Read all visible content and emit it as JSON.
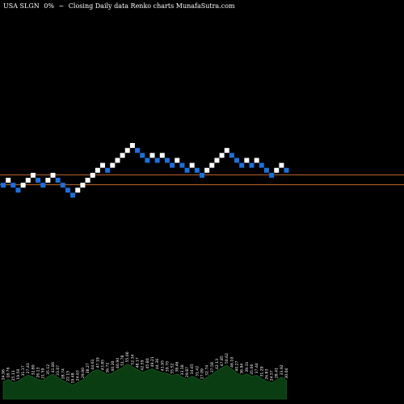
{
  "header": {
    "ticker": "USA SLGN",
    "change": "0%",
    "change_arrow": "~",
    "caption": "Closing Daily data Renko charts MunafaSutra.com"
  },
  "colors": {
    "background": "#000000",
    "up_brick": "#ffffff",
    "down_brick": "#1e6fd9",
    "reference_line": "#c06a2b",
    "volume_fill": "#0b3d12",
    "volume_text": "#ffffff"
  },
  "chart_data": {
    "type": "renko",
    "title": "",
    "xlabel": "",
    "ylabel": "",
    "ylim": [
      0,
      27
    ],
    "reference_levels": [
      9.5,
      11.5
    ],
    "bricks": [
      {
        "level": 9,
        "direction": "down"
      },
      {
        "level": 10,
        "direction": "up"
      },
      {
        "level": 9,
        "direction": "down"
      },
      {
        "level": 8,
        "direction": "down"
      },
      {
        "level": 9,
        "direction": "up"
      },
      {
        "level": 10,
        "direction": "up"
      },
      {
        "level": 11,
        "direction": "up"
      },
      {
        "level": 10,
        "direction": "down"
      },
      {
        "level": 9,
        "direction": "down"
      },
      {
        "level": 10,
        "direction": "up"
      },
      {
        "level": 11,
        "direction": "up"
      },
      {
        "level": 10,
        "direction": "down"
      },
      {
        "level": 9,
        "direction": "down"
      },
      {
        "level": 8,
        "direction": "down"
      },
      {
        "level": 7,
        "direction": "down"
      },
      {
        "level": 8,
        "direction": "up"
      },
      {
        "level": 9,
        "direction": "up"
      },
      {
        "level": 10,
        "direction": "up"
      },
      {
        "level": 11,
        "direction": "up"
      },
      {
        "level": 12,
        "direction": "up"
      },
      {
        "level": 13,
        "direction": "up"
      },
      {
        "level": 12,
        "direction": "down"
      },
      {
        "level": 13,
        "direction": "up"
      },
      {
        "level": 14,
        "direction": "up"
      },
      {
        "level": 15,
        "direction": "up"
      },
      {
        "level": 16,
        "direction": "up"
      },
      {
        "level": 17,
        "direction": "up"
      },
      {
        "level": 16,
        "direction": "down"
      },
      {
        "level": 15,
        "direction": "down"
      },
      {
        "level": 14,
        "direction": "down"
      },
      {
        "level": 15,
        "direction": "up"
      },
      {
        "level": 14,
        "direction": "down"
      },
      {
        "level": 15,
        "direction": "up"
      },
      {
        "level": 14,
        "direction": "down"
      },
      {
        "level": 13,
        "direction": "down"
      },
      {
        "level": 14,
        "direction": "up"
      },
      {
        "level": 13,
        "direction": "down"
      },
      {
        "level": 12,
        "direction": "down"
      },
      {
        "level": 13,
        "direction": "up"
      },
      {
        "level": 12,
        "direction": "down"
      },
      {
        "level": 11,
        "direction": "down"
      },
      {
        "level": 12,
        "direction": "up"
      },
      {
        "level": 13,
        "direction": "up"
      },
      {
        "level": 14,
        "direction": "up"
      },
      {
        "level": 15,
        "direction": "up"
      },
      {
        "level": 16,
        "direction": "up"
      },
      {
        "level": 15,
        "direction": "down"
      },
      {
        "level": 14,
        "direction": "down"
      },
      {
        "level": 13,
        "direction": "down"
      },
      {
        "level": 14,
        "direction": "up"
      },
      {
        "level": 13,
        "direction": "down"
      },
      {
        "level": 14,
        "direction": "up"
      },
      {
        "level": 13,
        "direction": "down"
      },
      {
        "level": 12,
        "direction": "down"
      },
      {
        "level": 11,
        "direction": "down"
      },
      {
        "level": 12,
        "direction": "up"
      },
      {
        "level": 13,
        "direction": "up"
      },
      {
        "level": 12,
        "direction": "down"
      }
    ],
    "volume": [
      4.1,
      4.6,
      3.9,
      4.2,
      5.0,
      5.6,
      5.2,
      4.6,
      4.4,
      5.3,
      5.8,
      5.1,
      4.3,
      3.8,
      3.3,
      3.9,
      4.5,
      5.6,
      6.5,
      6.9,
      6.4,
      5.7,
      6.1,
      6.8,
      7.4,
      8.2,
      7.6,
      6.9,
      6.3,
      6.7,
      7.1,
      6.6,
      6.2,
      6.0,
      5.5,
      5.9,
      5.2,
      4.7,
      5.4,
      4.9,
      4.3,
      5.1,
      5.8,
      6.6,
      7.3,
      7.9,
      7.0,
      6.1,
      5.5,
      5.9,
      5.3,
      5.6,
      4.8,
      4.2,
      3.9,
      4.5,
      5.2,
      4.4
    ],
    "volume_labels": [
      "24.96",
      "18.76",
      "25.11",
      "19.50",
      "31.17",
      "27.41",
      "32.80",
      "26.13",
      "21.59",
      "35.12",
      "41.86",
      "33.07",
      "28.74",
      "22.15",
      "19.48",
      "24.63",
      "29.90",
      "38.27",
      "44.61",
      "47.19",
      "43.85",
      "36.72",
      "40.30",
      "46.94",
      "51.78",
      "55.06",
      "52.34",
      "48.17",
      "42.59",
      "45.80",
      "49.21",
      "44.36",
      "41.95",
      "39.70",
      "35.52",
      "38.46",
      "33.18",
      "29.87",
      "34.65",
      "31.42",
      "27.09",
      "32.74",
      "37.58",
      "42.13",
      "47.85",
      "50.62",
      "46.10",
      "40.27",
      "36.94",
      "39.31",
      "35.06",
      "37.44",
      "31.29",
      "26.83",
      "24.57",
      "28.41",
      "33.92",
      "30.04"
    ]
  }
}
